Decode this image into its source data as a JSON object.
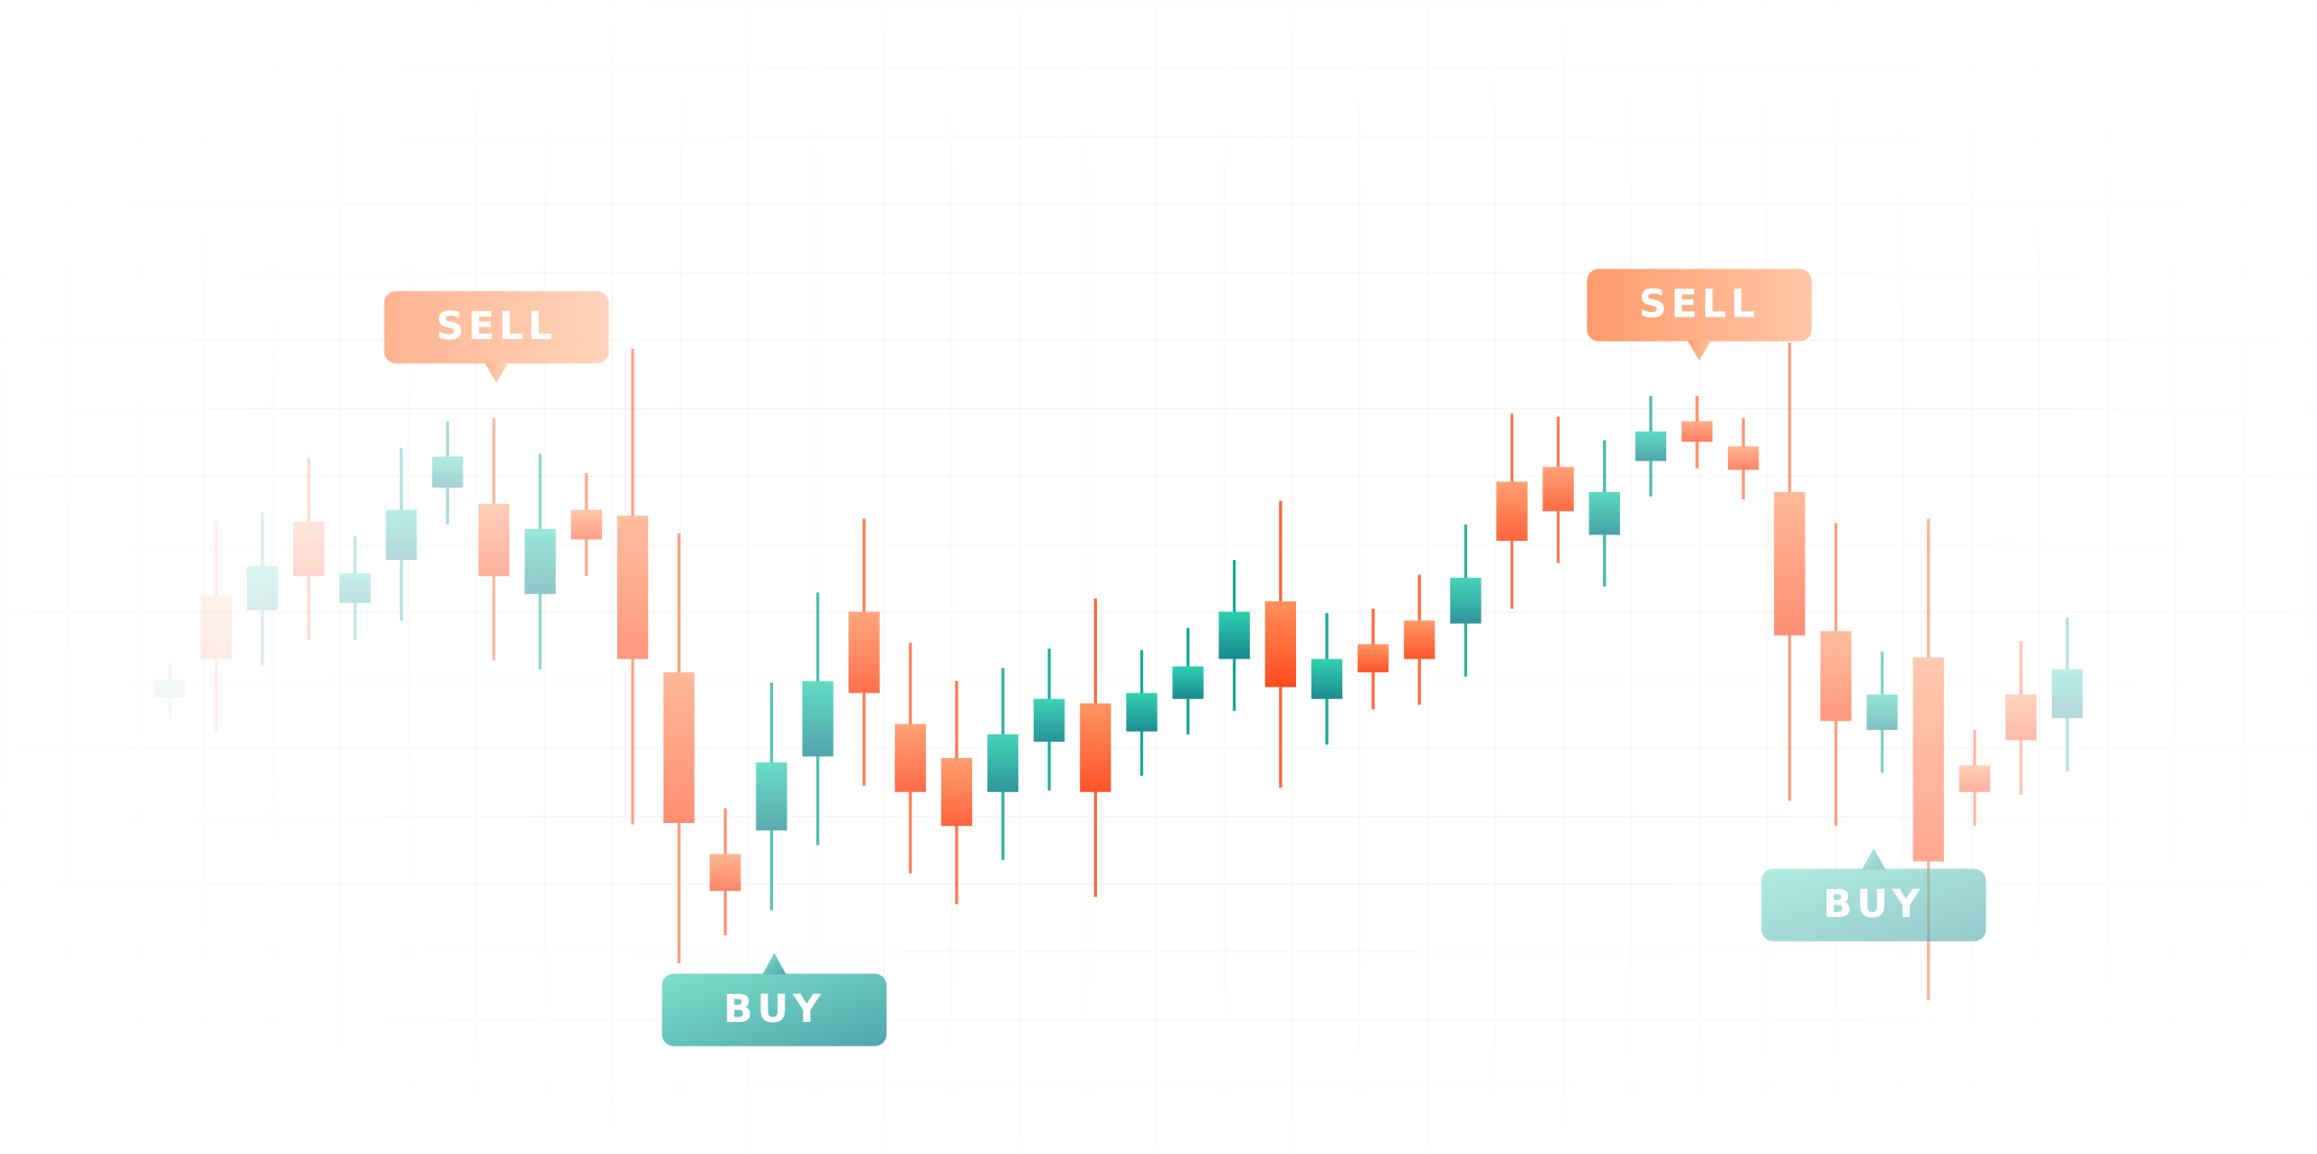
{
  "chart_data": {
    "type": "candlestick",
    "ylim": [
      20,
      800
    ],
    "up_color": "#12a998",
    "down_color": "#ff5f2e",
    "grid": true,
    "open": [
      328,
      397,
      387,
      447,
      392,
      421,
      470,
      459,
      398,
      455,
      451,
      345,
      222,
      238,
      288,
      386,
      310,
      287,
      264,
      298,
      324,
      305,
      327,
      354,
      393,
      327,
      364,
      380,
      378,
      474,
      484,
      438,
      488,
      515,
      498,
      467,
      373,
      306,
      355,
      282,
      330,
      314
    ],
    "high": [
      352,
      448,
      453,
      490,
      437,
      497,
      515,
      517,
      493,
      480,
      564,
      439,
      253,
      338,
      399,
      449,
      365,
      339,
      348,
      361,
      395,
      360,
      375,
      421,
      461,
      385,
      388,
      411,
      445,
      520,
      518,
      502,
      532,
      532,
      517,
      568,
      446,
      359,
      449,
      306,
      366,
      382
    ],
    "low": [
      313,
      305,
      350,
      367,
      367,
      380,
      445,
      353,
      347,
      410,
      242,
      148,
      167,
      184,
      228,
      268,
      209,
      188,
      218,
      265,
      193,
      275,
      303,
      319,
      267,
      296,
      320,
      323,
      342,
      388,
      419,
      403,
      464,
      483,
      462,
      258,
      241,
      277,
      123,
      241,
      262,
      278
    ],
    "close": [
      340,
      354,
      417,
      410,
      412,
      455,
      491,
      410,
      442,
      435,
      354,
      243,
      197,
      284,
      339,
      331,
      264,
      241,
      303,
      327,
      264,
      331,
      349,
      386,
      335,
      354,
      345,
      354,
      409,
      434,
      454,
      467,
      508,
      501,
      482,
      370,
      312,
      330,
      217,
      264,
      299,
      347
    ],
    "annotations": [
      "SELL",
      "BUY",
      "SELL",
      "BUY"
    ]
  }
}
